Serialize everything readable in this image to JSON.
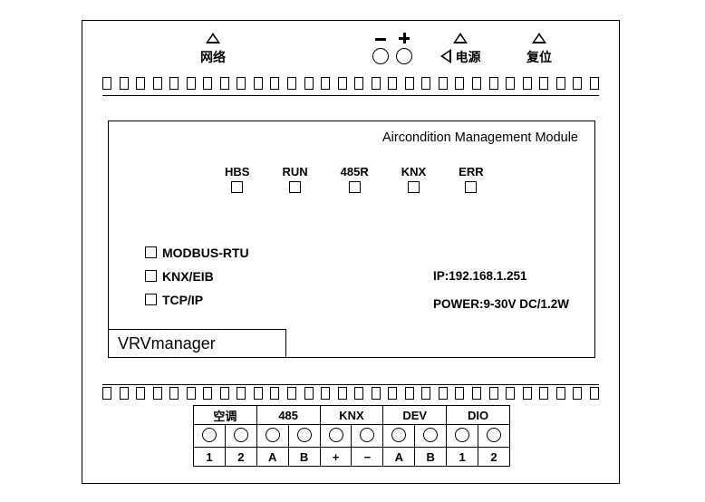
{
  "top": {
    "network_label": "网络",
    "power_label": "电源",
    "reset_label": "复位"
  },
  "pins": {
    "count": 30
  },
  "panel": {
    "title": "Aircondition Management Module",
    "leds": [
      "HBS",
      "RUN",
      "485R",
      "KNX",
      "ERR"
    ],
    "options": [
      "MODBUS-RTU",
      "KNX/EIB",
      "TCP/IP"
    ],
    "ip_label": "IP:192.168.1.251",
    "power_label": "POWER:9-30V  DC/1.2W",
    "brand": "VRVmanager"
  },
  "terminals": {
    "groups": [
      {
        "label": "空调",
        "pins": [
          "1",
          "2"
        ]
      },
      {
        "label": "485",
        "pins": [
          "A",
          "B"
        ]
      },
      {
        "label": "KNX",
        "pins": [
          "+",
          "−"
        ]
      },
      {
        "label": "DEV",
        "pins": [
          "A",
          "B"
        ]
      },
      {
        "label": "DIO",
        "pins": [
          "1",
          "2"
        ]
      }
    ]
  },
  "colors": {
    "line": "#000000",
    "bg": "#ffffff"
  }
}
